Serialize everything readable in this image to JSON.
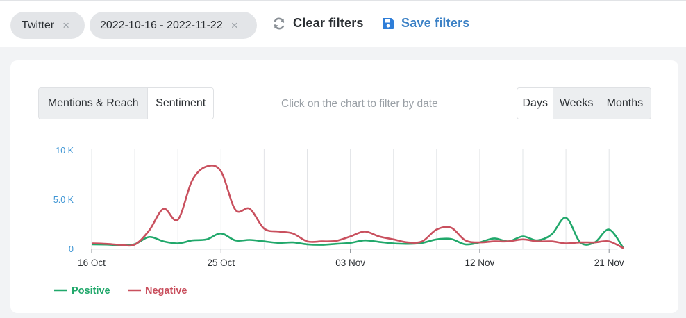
{
  "filters": {
    "chips": [
      {
        "label": "Twitter",
        "remove": "×"
      },
      {
        "label": "2022-10-16 - 2022-11-22",
        "remove": "×"
      }
    ],
    "clear_label": "Clear filters",
    "save_label": "Save filters"
  },
  "view_tabs": [
    "Mentions & Reach",
    "Sentiment"
  ],
  "active_view_tab": "Sentiment",
  "hint": "Click on the chart to filter by date",
  "period_tabs": [
    "Days",
    "Weeks",
    "Months"
  ],
  "active_period_tab": "Days",
  "colors": {
    "positive": "#21a86b",
    "negative": "#c9505e",
    "accent": "#3d82c6",
    "axis_label": "#3d95d4"
  },
  "icons": [
    "refresh-icon",
    "floppy-disk-icon",
    "close-icon"
  ],
  "chart_data": {
    "type": "line",
    "title": "",
    "xlabel": "",
    "ylabel": "",
    "ylim": [
      0,
      10000
    ],
    "y_ticks": [
      {
        "value": 0,
        "label": "0"
      },
      {
        "value": 5000,
        "label": "5.0 K"
      },
      {
        "value": 10000,
        "label": "10 K"
      }
    ],
    "x_ticks": [
      {
        "day": 0,
        "label": "16 Oct"
      },
      {
        "day": 9,
        "label": "25 Oct"
      },
      {
        "day": 18,
        "label": "03 Nov"
      },
      {
        "day": 27,
        "label": "12 Nov"
      },
      {
        "day": 36,
        "label": "21 Nov"
      }
    ],
    "x_start": "2022-10-16",
    "x_end": "2022-11-22",
    "grid": "vertical",
    "legend": "bottom-left",
    "series": [
      {
        "name": "Positive",
        "color": "#21a86b",
        "values": [
          500,
          480,
          420,
          520,
          1250,
          800,
          600,
          900,
          1000,
          1600,
          900,
          950,
          800,
          650,
          700,
          500,
          450,
          550,
          650,
          900,
          750,
          600,
          550,
          650,
          1000,
          1050,
          500,
          700,
          1100,
          800,
          1300,
          900,
          1500,
          3200,
          700,
          700,
          2000,
          100
        ]
      },
      {
        "name": "Negative",
        "color": "#c9505e",
        "values": [
          600,
          550,
          450,
          480,
          1900,
          4100,
          3000,
          7000,
          8400,
          7900,
          4000,
          4100,
          2100,
          1800,
          1600,
          800,
          800,
          850,
          1300,
          1800,
          1300,
          1000,
          700,
          800,
          2000,
          2200,
          900,
          700,
          800,
          800,
          1000,
          800,
          800,
          600,
          700,
          700,
          800,
          100
        ]
      }
    ]
  }
}
